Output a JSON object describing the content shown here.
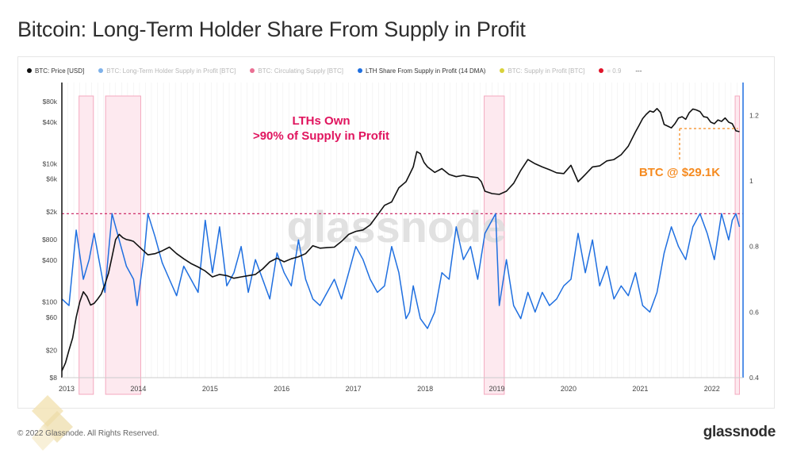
{
  "page": {
    "title": "Bitcoin: Long-Term Holder Share From Supply in Profit",
    "copyright": "© 2022 Glassnode. All Rights Reserved.",
    "brand": "glassnode",
    "watermark": "glassnode"
  },
  "legend": [
    {
      "label": "BTC: Price [USD]",
      "color": "#111111",
      "active": true
    },
    {
      "label": "BTC: Long-Term Holder Supply in Profit [BTC]",
      "color": "#7fb2ea",
      "active": false
    },
    {
      "label": "BTC: Circulating Supply [BTC]",
      "color": "#ea6f93",
      "active": false
    },
    {
      "label": "LTH Share From Supply in Profit (14 DMA)",
      "color": "#1f6fe0",
      "active": true
    },
    {
      "label": "BTC: Supply in Profit [BTC]",
      "color": "#d9d23a",
      "active": false
    },
    {
      "label": "= 0.9",
      "color": "#e0142a",
      "active": true
    },
    {
      "label": "---",
      "color": "#ffffff",
      "active": true
    }
  ],
  "annotations": {
    "lth_note_line1": "LTHs Own",
    "lth_note_line2": ">90% of Supply in Profit",
    "btc_price_note": "BTC @ $29.1K"
  },
  "colors": {
    "price": "#111111",
    "lth_share": "#1f6fe0",
    "threshold": "#c8185a",
    "highlight_fill": "#fde9ef",
    "highlight_stroke": "#f4a9bf",
    "annotation_pink": "#e0145e",
    "annotation_orange": "#f58a1f",
    "right_axis": "#1f6fe0"
  },
  "chart_data": {
    "type": "line",
    "x_ticks": [
      "2013",
      "2014",
      "2015",
      "2016",
      "2017",
      "2018",
      "2019",
      "2020",
      "2021",
      "2022"
    ],
    "x_range": [
      2013.0,
      2022.5
    ],
    "y_left": {
      "scale": "log",
      "range": [
        8,
        150000
      ],
      "ticks": [
        "$8",
        "$20",
        "$60",
        "$100",
        "$400",
        "$800",
        "$2k",
        "$6k",
        "$10k",
        "$40k",
        "$80k"
      ],
      "tick_values": [
        8,
        20,
        60,
        100,
        400,
        800,
        2000,
        6000,
        10000,
        40000,
        80000
      ]
    },
    "y_right": {
      "scale": "linear",
      "range": [
        0.4,
        1.3
      ],
      "ticks": [
        "0.4",
        "0.6",
        "0.8",
        "1",
        "1.2"
      ],
      "tick_values": [
        0.4,
        0.6,
        0.8,
        1.0,
        1.2
      ]
    },
    "threshold": 0.9,
    "highlight_periods": [
      [
        2013.24,
        2013.44
      ],
      [
        2013.61,
        2014.1
      ],
      [
        2018.89,
        2019.17
      ],
      [
        2022.39,
        2022.45
      ]
    ],
    "series": [
      {
        "name": "BTC: Price [USD]",
        "axis": "left",
        "x": [
          2013.0,
          2013.05,
          2013.1,
          2013.15,
          2013.2,
          2013.25,
          2013.3,
          2013.35,
          2013.4,
          2013.45,
          2013.5,
          2013.55,
          2013.6,
          2013.65,
          2013.7,
          2013.75,
          2013.8,
          2013.85,
          2013.9,
          2013.95,
          2014.0,
          2014.1,
          2014.2,
          2014.3,
          2014.4,
          2014.5,
          2014.6,
          2014.7,
          2014.8,
          2014.9,
          2015.0,
          2015.1,
          2015.2,
          2015.3,
          2015.4,
          2015.5,
          2015.6,
          2015.7,
          2015.8,
          2015.9,
          2016.0,
          2016.1,
          2016.2,
          2016.3,
          2016.4,
          2016.5,
          2016.6,
          2016.7,
          2016.8,
          2016.9,
          2017.0,
          2017.1,
          2017.2,
          2017.3,
          2017.4,
          2017.5,
          2017.6,
          2017.7,
          2017.8,
          2017.85,
          2017.9,
          2017.95,
          2018.0,
          2018.05,
          2018.1,
          2018.2,
          2018.3,
          2018.4,
          2018.5,
          2018.6,
          2018.7,
          2018.8,
          2018.85,
          2018.9,
          2019.0,
          2019.1,
          2019.2,
          2019.3,
          2019.4,
          2019.5,
          2019.6,
          2019.7,
          2019.8,
          2019.9,
          2020.0,
          2020.1,
          2020.2,
          2020.25,
          2020.3,
          2020.4,
          2020.5,
          2020.6,
          2020.7,
          2020.8,
          2020.9,
          2021.0,
          2021.05,
          2021.1,
          2021.15,
          2021.2,
          2021.25,
          2021.3,
          2021.35,
          2021.4,
          2021.45,
          2021.5,
          2021.55,
          2021.6,
          2021.65,
          2021.7,
          2021.75,
          2021.8,
          2021.85,
          2021.9,
          2021.95,
          2022.0,
          2022.05,
          2022.1,
          2022.15,
          2022.2,
          2022.25,
          2022.3,
          2022.35,
          2022.4,
          2022.45
        ],
        "y": [
          10,
          13,
          20,
          30,
          60,
          100,
          140,
          120,
          90,
          95,
          110,
          130,
          180,
          260,
          450,
          800,
          950,
          850,
          800,
          780,
          750,
          600,
          480,
          500,
          550,
          620,
          500,
          420,
          360,
          320,
          280,
          230,
          250,
          240,
          220,
          230,
          240,
          250,
          300,
          380,
          430,
          380,
          420,
          450,
          500,
          650,
          600,
          610,
          620,
          750,
          950,
          1050,
          1100,
          1300,
          1800,
          2500,
          2800,
          4500,
          5500,
          7000,
          9000,
          15000,
          14000,
          10500,
          9000,
          7500,
          8500,
          7000,
          6500,
          6800,
          6500,
          6300,
          5500,
          4000,
          3700,
          3600,
          4000,
          5200,
          8000,
          11500,
          10000,
          9000,
          8200,
          7400,
          7200,
          9500,
          5500,
          6200,
          7000,
          9000,
          9300,
          11000,
          11500,
          13500,
          18000,
          29000,
          36000,
          45000,
          52000,
          58000,
          56000,
          63000,
          55000,
          37000,
          35000,
          33000,
          38000,
          46000,
          48000,
          44000,
          55000,
          62000,
          60000,
          57000,
          48000,
          47000,
          40000,
          38000,
          43000,
          41000,
          46000,
          40000,
          38000,
          30000,
          29100
        ]
      },
      {
        "name": "LTH Share From Supply in Profit (14 DMA)",
        "axis": "right",
        "x": [
          2013.0,
          2013.1,
          2013.2,
          2013.3,
          2013.38,
          2013.45,
          2013.6,
          2013.7,
          2013.8,
          2013.9,
          2014.0,
          2014.05,
          2014.15,
          2014.2,
          2014.3,
          2014.4,
          2014.5,
          2014.6,
          2014.7,
          2014.8,
          2014.9,
          2015.0,
          2015.1,
          2015.2,
          2015.3,
          2015.4,
          2015.5,
          2015.6,
          2015.7,
          2015.8,
          2015.9,
          2016.0,
          2016.1,
          2016.2,
          2016.3,
          2016.4,
          2016.5,
          2016.6,
          2016.7,
          2016.8,
          2016.9,
          2017.0,
          2017.1,
          2017.2,
          2017.3,
          2017.4,
          2017.5,
          2017.6,
          2017.7,
          2017.8,
          2017.85,
          2017.9,
          2018.0,
          2018.1,
          2018.2,
          2018.3,
          2018.4,
          2018.5,
          2018.6,
          2018.7,
          2018.8,
          2018.9,
          2019.0,
          2019.05,
          2019.1,
          2019.2,
          2019.3,
          2019.4,
          2019.5,
          2019.6,
          2019.7,
          2019.8,
          2019.9,
          2020.0,
          2020.1,
          2020.2,
          2020.3,
          2020.4,
          2020.5,
          2020.6,
          2020.7,
          2020.8,
          2020.9,
          2021.0,
          2021.1,
          2021.2,
          2021.3,
          2021.4,
          2021.5,
          2021.6,
          2021.7,
          2021.8,
          2021.9,
          2022.0,
          2022.1,
          2022.2,
          2022.3,
          2022.35,
          2022.4,
          2022.45
        ],
        "y": [
          0.64,
          0.62,
          0.85,
          0.7,
          0.76,
          0.84,
          0.66,
          0.9,
          0.82,
          0.74,
          0.7,
          0.62,
          0.78,
          0.9,
          0.83,
          0.75,
          0.7,
          0.65,
          0.74,
          0.7,
          0.66,
          0.88,
          0.72,
          0.86,
          0.68,
          0.72,
          0.8,
          0.66,
          0.76,
          0.7,
          0.64,
          0.78,
          0.72,
          0.68,
          0.82,
          0.7,
          0.64,
          0.62,
          0.66,
          0.7,
          0.64,
          0.72,
          0.8,
          0.76,
          0.7,
          0.66,
          0.68,
          0.8,
          0.72,
          0.58,
          0.6,
          0.68,
          0.58,
          0.55,
          0.6,
          0.72,
          0.7,
          0.86,
          0.76,
          0.8,
          0.7,
          0.84,
          0.88,
          0.9,
          0.62,
          0.76,
          0.62,
          0.58,
          0.66,
          0.6,
          0.66,
          0.62,
          0.64,
          0.68,
          0.7,
          0.84,
          0.72,
          0.82,
          0.68,
          0.74,
          0.64,
          0.68,
          0.65,
          0.72,
          0.62,
          0.6,
          0.66,
          0.78,
          0.86,
          0.8,
          0.76,
          0.86,
          0.9,
          0.84,
          0.76,
          0.9,
          0.82,
          0.88,
          0.9,
          0.86
        ]
      }
    ]
  }
}
